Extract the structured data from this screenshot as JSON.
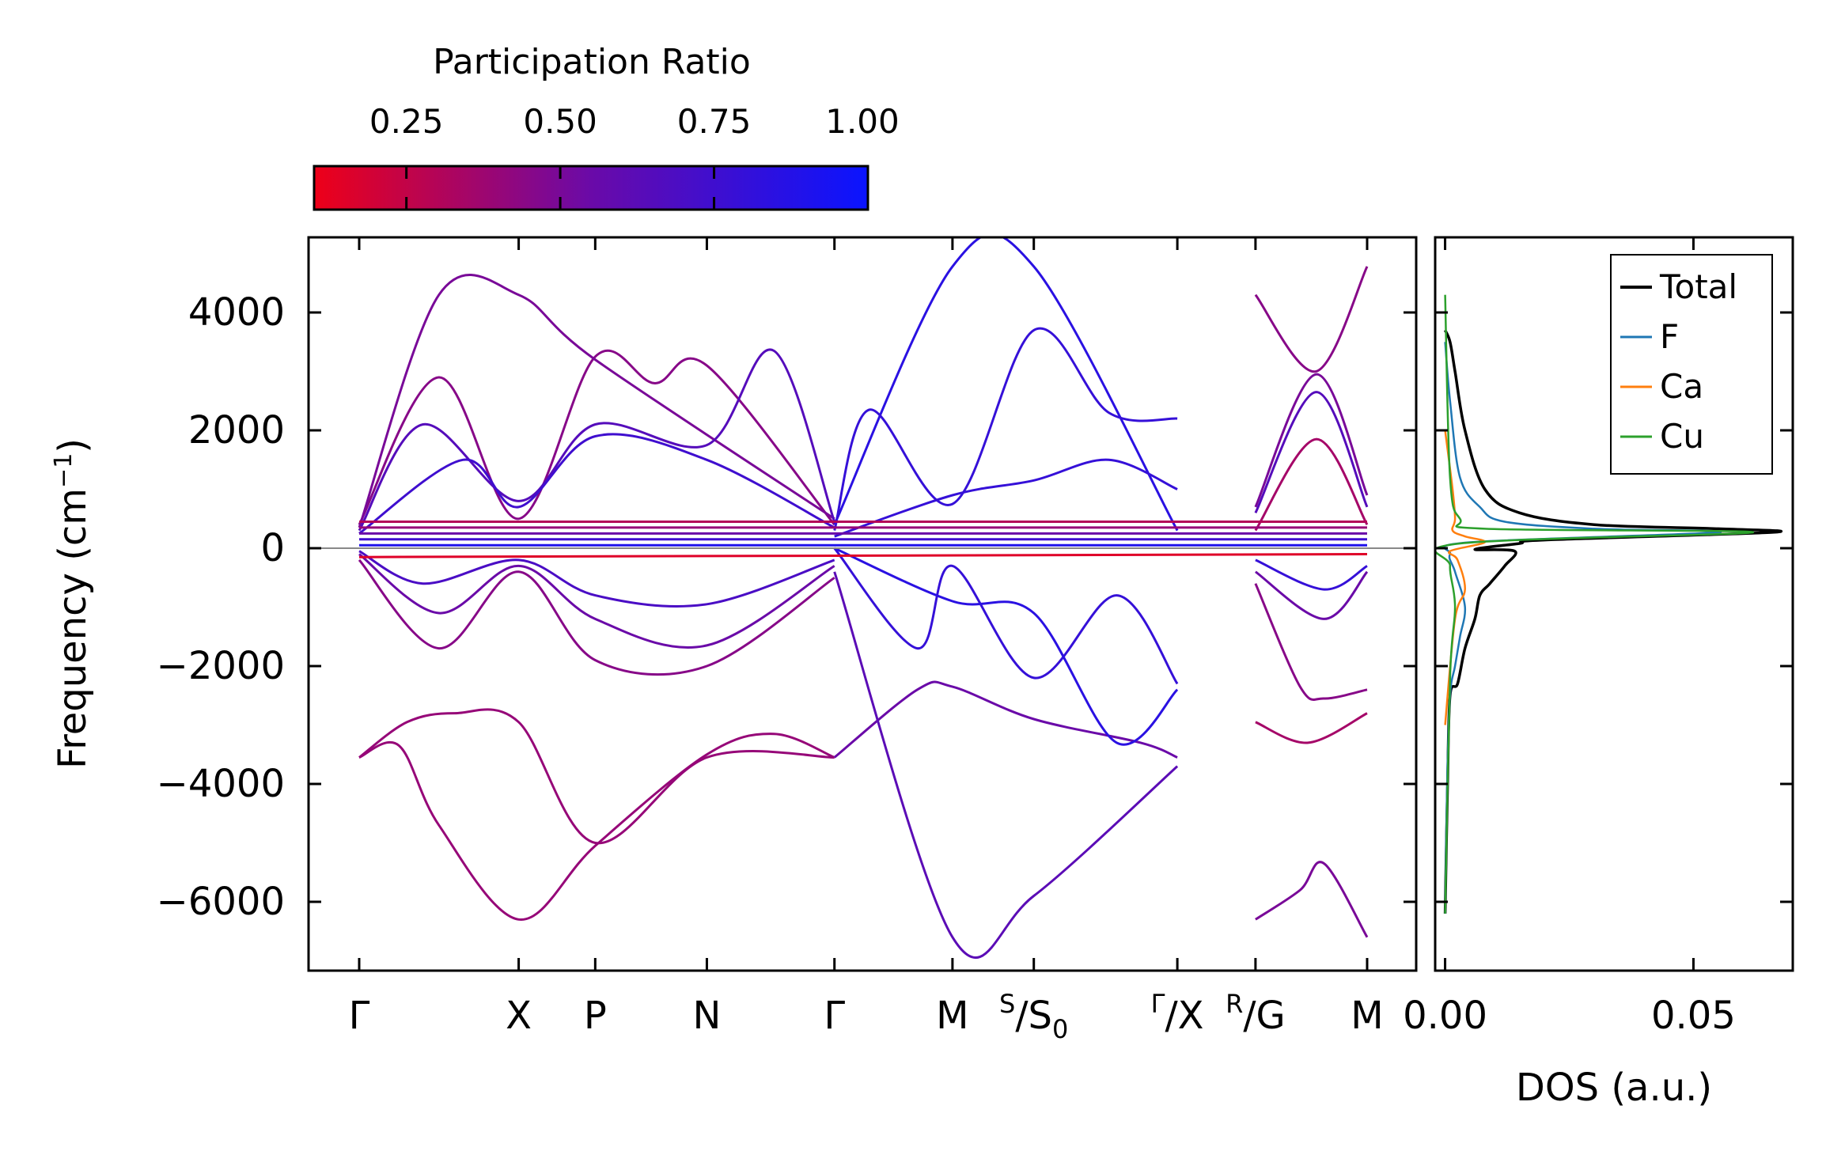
{
  "chart_data": [
    {
      "type": "line",
      "title": "",
      "xlabel": "",
      "ylabel": "Frequency (cm",
      "ylabel_exponent": "−1",
      "ylabel_close": ")",
      "ylim": [
        -7200,
        5300
      ],
      "yticks": [
        4000,
        2000,
        0,
        -2000,
        -4000,
        -6000
      ],
      "ytick_labels": [
        "4000",
        "2000",
        "0",
        "−2000",
        "−4000",
        "−6000"
      ],
      "grid": false,
      "colormap": {
        "label": "Participation Ratio",
        "range": [
          0.1,
          1.0
        ],
        "ticks": [
          0.25,
          0.5,
          0.75,
          1.0
        ],
        "tick_labels": [
          "0.25",
          "0.50",
          "0.75",
          "1.00"
        ],
        "low_color": "#ee0018",
        "mid_color": "#6a0aa8",
        "high_color": "#0a14ff"
      },
      "k_path": {
        "positions": [
          0,
          1,
          1.48,
          2.18,
          2.98,
          3.72,
          4.23,
          5.13,
          5.62,
          6.32
        ],
        "labels": [
          {
            "main": "Γ",
            "sup": "",
            "sub": ""
          },
          {
            "main": "X",
            "sup": "",
            "sub": ""
          },
          {
            "main": "P",
            "sup": "",
            "sub": ""
          },
          {
            "main": "N",
            "sup": "",
            "sub": ""
          },
          {
            "main": "Γ",
            "sup": "",
            "sub": ""
          },
          {
            "main": "M",
            "sup": "",
            "sub": ""
          },
          {
            "main": "/S",
            "sup": "S",
            "sub": "0"
          },
          {
            "main": "/X",
            "sup": "Γ",
            "sub": ""
          },
          {
            "main": "/G",
            "sup": "R",
            "sub": ""
          },
          {
            "main": "M",
            "sup": "",
            "sub": ""
          }
        ],
        "segment_break_after": 5.13
      },
      "series": [
        {
          "name": "band-1",
          "pr": 0.4,
          "nodes": [
            [
              0,
              -3550
            ],
            [
              0.25,
              -3350
            ],
            [
              0.5,
              -4700
            ],
            [
              1,
              -6300
            ],
            [
              1.48,
              -5050
            ],
            [
              2.18,
              -3500
            ],
            [
              2.6,
              -3150
            ],
            [
              2.98,
              -3550
            ]
          ]
        },
        {
          "name": "band-2",
          "pr": 0.4,
          "nodes": [
            [
              0,
              -3550
            ],
            [
              0.3,
              -2950
            ],
            [
              0.6,
              -2800
            ],
            [
              1,
              -2950
            ],
            [
              1.48,
              -5000
            ],
            [
              2.18,
              -3550
            ],
            [
              2.98,
              -3550
            ]
          ]
        },
        {
          "name": "band-3",
          "pr": 0.55,
          "nodes": [
            [
              2.98,
              -3550
            ],
            [
              3.5,
              -2400
            ],
            [
              3.72,
              -2350
            ],
            [
              4.23,
              -2900
            ],
            [
              4.9,
              -3300
            ],
            [
              5.13,
              -3550
            ]
          ]
        },
        {
          "name": "band-4",
          "pr": 0.62,
          "nodes": [
            [
              2.98,
              -400
            ],
            [
              3.72,
              -6600
            ],
            [
              4.23,
              -5900
            ],
            [
              5.13,
              -3700
            ]
          ]
        },
        {
          "name": "band-5",
          "pr": 0.5,
          "nodes": [
            [
              5.62,
              -6300
            ],
            [
              5.9,
              -5800
            ],
            [
              6.05,
              -5350
            ],
            [
              6.32,
              -6600
            ]
          ]
        },
        {
          "name": "band-6",
          "pr": 0.35,
          "nodes": [
            [
              5.62,
              -2950
            ],
            [
              5.95,
              -3300
            ],
            [
              6.32,
              -2800
            ]
          ]
        },
        {
          "name": "band-7",
          "pr": 0.45,
          "nodes": [
            [
              0,
              -200
            ],
            [
              0.5,
              -1700
            ],
            [
              1,
              -400
            ],
            [
              1.48,
              -1900
            ],
            [
              2.18,
              -2000
            ],
            [
              2.98,
              -500
            ]
          ]
        },
        {
          "name": "band-8",
          "pr": 0.55,
          "nodes": [
            [
              0,
              -100
            ],
            [
              0.5,
              -1100
            ],
            [
              1,
              -300
            ],
            [
              1.48,
              -1200
            ],
            [
              2.18,
              -1650
            ],
            [
              2.98,
              -300
            ]
          ]
        },
        {
          "name": "band-9",
          "pr": 0.7,
          "nodes": [
            [
              0,
              -50
            ],
            [
              0.4,
              -600
            ],
            [
              1,
              -200
            ],
            [
              1.48,
              -800
            ],
            [
              2.18,
              -950
            ],
            [
              2.98,
              -200
            ]
          ]
        },
        {
          "name": "band-10",
          "pr": 0.8,
          "nodes": [
            [
              2.98,
              0
            ],
            [
              3.5,
              -1700
            ],
            [
              3.72,
              -300
            ],
            [
              4.23,
              -2200
            ],
            [
              4.75,
              -800
            ],
            [
              5.13,
              -2300
            ]
          ]
        },
        {
          "name": "band-11",
          "pr": 0.85,
          "nodes": [
            [
              2.98,
              0
            ],
            [
              3.72,
              -900
            ],
            [
              4.23,
              -1100
            ],
            [
              4.75,
              -3300
            ],
            [
              5.13,
              -2400
            ]
          ]
        },
        {
          "name": "band-12",
          "pr": 0.45,
          "nodes": [
            [
              5.62,
              -600
            ],
            [
              5.9,
              -2350
            ],
            [
              6.05,
              -2550
            ],
            [
              6.32,
              -2400
            ]
          ]
        },
        {
          "name": "band-13",
          "pr": 0.55,
          "nodes": [
            [
              5.62,
              -400
            ],
            [
              6.05,
              -1200
            ],
            [
              6.32,
              -400
            ]
          ]
        },
        {
          "name": "band-14",
          "pr": 0.8,
          "nodes": [
            [
              5.62,
              -200
            ],
            [
              6.05,
              -700
            ],
            [
              6.32,
              -300
            ]
          ]
        },
        {
          "name": "band-15",
          "pr": 0.45,
          "nodes": [
            [
              0,
              400
            ],
            [
              0.5,
              2900
            ],
            [
              1,
              500
            ],
            [
              1.48,
              3250
            ],
            [
              1.85,
              2800
            ],
            [
              2.18,
              3100
            ],
            [
              2.98,
              400
            ]
          ]
        },
        {
          "name": "band-16",
          "pr": 0.5,
          "nodes": [
            [
              0,
              350
            ],
            [
              0.5,
              4300
            ],
            [
              1,
              4300
            ],
            [
              1.48,
              3200
            ],
            [
              2.98,
              500
            ]
          ]
        },
        {
          "name": "band-17",
          "pr": 0.65,
          "nodes": [
            [
              0,
              300
            ],
            [
              0.4,
              2100
            ],
            [
              1,
              800
            ],
            [
              1.48,
              2100
            ],
            [
              2.18,
              1750
            ],
            [
              2.6,
              3350
            ],
            [
              2.98,
              450
            ]
          ]
        },
        {
          "name": "band-18",
          "pr": 0.75,
          "nodes": [
            [
              0,
              250
            ],
            [
              0.65,
              1500
            ],
            [
              1,
              700
            ],
            [
              1.48,
              1900
            ],
            [
              2.18,
              1500
            ],
            [
              2.98,
              350
            ]
          ]
        },
        {
          "name": "band-19",
          "pr": 0.85,
          "nodes": [
            [
              2.98,
              400
            ],
            [
              3.72,
              4780
            ],
            [
              4.23,
              4780
            ],
            [
              5.13,
              300
            ]
          ]
        },
        {
          "name": "band-20",
          "pr": 0.8,
          "nodes": [
            [
              2.98,
              300
            ],
            [
              3.2,
              2350
            ],
            [
              3.72,
              750
            ],
            [
              4.23,
              3700
            ],
            [
              4.7,
              2300
            ],
            [
              5.13,
              2200
            ]
          ]
        },
        {
          "name": "band-21",
          "pr": 0.8,
          "nodes": [
            [
              2.98,
              200
            ],
            [
              3.72,
              900
            ],
            [
              4.23,
              1150
            ],
            [
              4.7,
              1500
            ],
            [
              5.13,
              1000
            ]
          ]
        },
        {
          "name": "band-22",
          "pr": 0.45,
          "nodes": [
            [
              5.62,
              4300
            ],
            [
              6.0,
              3000
            ],
            [
              6.32,
              4780
            ]
          ]
        },
        {
          "name": "band-23",
          "pr": 0.5,
          "nodes": [
            [
              5.62,
              700
            ],
            [
              6.0,
              2950
            ],
            [
              6.32,
              900
            ]
          ]
        },
        {
          "name": "band-24",
          "pr": 0.65,
          "nodes": [
            [
              5.62,
              600
            ],
            [
              6.0,
              2650
            ],
            [
              6.32,
              700
            ]
          ]
        },
        {
          "name": "band-25",
          "pr": 0.35,
          "nodes": [
            [
              5.62,
              300
            ],
            [
              6.0,
              1850
            ],
            [
              6.32,
              400
            ]
          ]
        },
        {
          "name": "flat-1",
          "pr": 0.3,
          "nodes": [
            [
              0,
              450
            ],
            [
              6.32,
              450
            ]
          ]
        },
        {
          "name": "flat-2",
          "pr": 0.4,
          "nodes": [
            [
              0,
              350
            ],
            [
              6.32,
              350
            ]
          ]
        },
        {
          "name": "flat-3",
          "pr": 0.55,
          "nodes": [
            [
              0,
              250
            ],
            [
              6.32,
              250
            ]
          ]
        },
        {
          "name": "flat-4",
          "pr": 0.75,
          "nodes": [
            [
              0,
              150
            ],
            [
              6.32,
              150
            ]
          ]
        },
        {
          "name": "flat-5",
          "pr": 0.15,
          "nodes": [
            [
              0,
              -150
            ],
            [
              6.32,
              -100
            ]
          ]
        },
        {
          "name": "flat-6",
          "pr": 0.9,
          "nodes": [
            [
              0,
              50
            ],
            [
              6.32,
              50
            ]
          ]
        }
      ]
    },
    {
      "type": "line",
      "title": "",
      "xlabel": "DOS (a.u.)",
      "ylabel": "",
      "xlim": [
        -0.002,
        0.07
      ],
      "xticks": [
        0.0,
        0.05
      ],
      "xtick_labels": [
        "0.00",
        "0.05"
      ],
      "ylim": [
        -7200,
        5300
      ],
      "legend_position": "top-right",
      "series": [
        {
          "name": "Total",
          "color": "#000000",
          "points": [
            [
              0,
              -6200
            ],
            [
              0.0005,
              -4000
            ],
            [
              0.001,
              -2500
            ],
            [
              0.0025,
              -2300
            ],
            [
              0.004,
              -1700
            ],
            [
              0.006,
              -1200
            ],
            [
              0.007,
              -800
            ],
            [
              0.009,
              -600
            ],
            [
              0.012,
              -300
            ],
            [
              0.014,
              -50
            ],
            [
              0.006,
              -20
            ],
            [
              0.015,
              80
            ],
            [
              0.02,
              140
            ],
            [
              0.066,
              270
            ],
            [
              0.055,
              330
            ],
            [
              0.03,
              400
            ],
            [
              0.015,
              600
            ],
            [
              0.008,
              1000
            ],
            [
              0.004,
              2000
            ],
            [
              0.002,
              3000
            ],
            [
              0.001,
              3500
            ],
            [
              0,
              3700
            ]
          ]
        },
        {
          "name": "F",
          "color": "#1f77b4",
          "points": [
            [
              0,
              -6200
            ],
            [
              0.0004,
              -4000
            ],
            [
              0.001,
              -2500
            ],
            [
              0.002,
              -2000
            ],
            [
              0.003,
              -1500
            ],
            [
              0.004,
              -1000
            ],
            [
              0.002,
              -400
            ],
            [
              0.001,
              -100
            ],
            [
              0.005,
              100
            ],
            [
              0.055,
              270
            ],
            [
              0.03,
              330
            ],
            [
              0.012,
              450
            ],
            [
              0.007,
              700
            ],
            [
              0.003,
              1200
            ],
            [
              0.001,
              2500
            ],
            [
              0,
              3500
            ]
          ]
        },
        {
          "name": "Ca",
          "color": "#ff7f0e",
          "points": [
            [
              0,
              -3000
            ],
            [
              0.002,
              -1200
            ],
            [
              0.004,
              -700
            ],
            [
              0.0025,
              -200
            ],
            [
              0.001,
              -50
            ],
            [
              0.008,
              100
            ],
            [
              0.004,
              200
            ],
            [
              0.0015,
              300
            ],
            [
              0.002,
              500
            ],
            [
              0.0015,
              1000
            ],
            [
              0,
              2000
            ]
          ]
        },
        {
          "name": "Cu",
          "color": "#2ca02c",
          "points": [
            [
              0,
              -6200
            ],
            [
              0.001,
              -2200
            ],
            [
              0.002,
              -1000
            ],
            [
              0.001,
              -300
            ],
            [
              0.003,
              80
            ],
            [
              0.062,
              270
            ],
            [
              0.008,
              330
            ],
            [
              0.003,
              500
            ],
            [
              0.001,
              1200
            ],
            [
              0,
              4300
            ]
          ]
        }
      ]
    }
  ]
}
